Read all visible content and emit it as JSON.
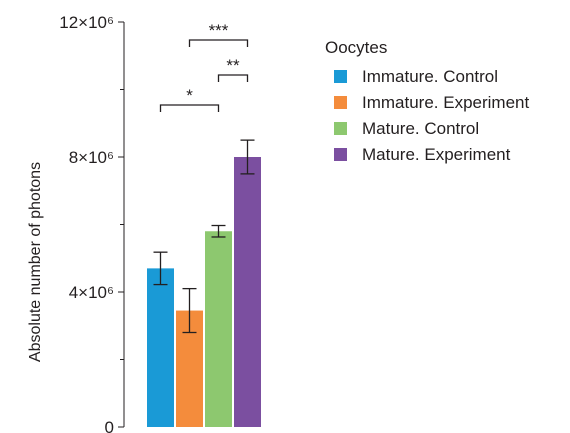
{
  "chart_data": {
    "type": "bar",
    "title": "",
    "xlabel": "",
    "ylabel": "Absolute number of photons",
    "ylim": [
      0,
      12000000
    ],
    "y_ticks": [
      {
        "value": 0,
        "label": "0"
      },
      {
        "value": 4000000,
        "label": "4×10⁶"
      },
      {
        "value": 8000000,
        "label": "8×10⁶"
      },
      {
        "value": 12000000,
        "label": "12×10⁶"
      }
    ],
    "y_minor_ticks": [
      2000000,
      6000000,
      10000000
    ],
    "legend": {
      "title": "Oocytes",
      "placement": "right"
    },
    "series": [
      {
        "name": "Immature. Control",
        "value": 4700000,
        "error": 480000,
        "color": "#1a9ad6"
      },
      {
        "name": "Immature. Experiment",
        "value": 3450000,
        "error": 650000,
        "color": "#f48c3c"
      },
      {
        "name": "Mature. Control",
        "value": 5800000,
        "error": 170000,
        "color": "#8dc86f"
      },
      {
        "name": "Mature. Experiment",
        "value": 8000000,
        "error": 500000,
        "color": "#7b4fa0"
      }
    ],
    "significance": [
      {
        "from": 0,
        "to": 2,
        "label": "*"
      },
      {
        "from": 2,
        "to": 3,
        "label": "**"
      },
      {
        "from": 1,
        "to": 3,
        "label": "***"
      }
    ]
  }
}
